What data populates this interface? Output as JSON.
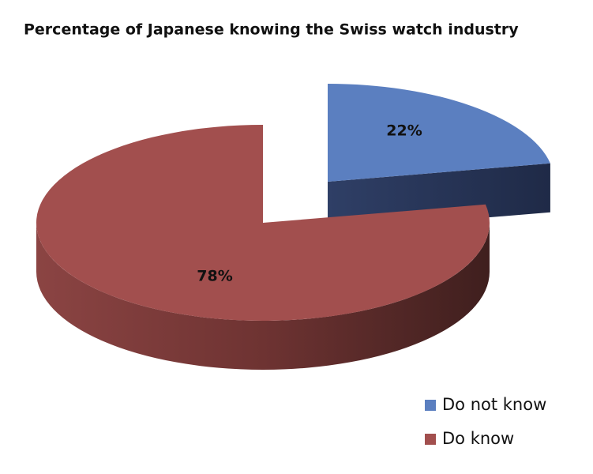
{
  "chart_data": {
    "type": "pie",
    "title": "Percentage of Japanese knowing the Swiss watch industry",
    "categories": [
      "Do not know",
      "Do know"
    ],
    "values": [
      22,
      78
    ],
    "value_labels": [
      "22%",
      "78%"
    ],
    "colors": [
      "#5b7fc0",
      "#a24f4e"
    ]
  }
}
